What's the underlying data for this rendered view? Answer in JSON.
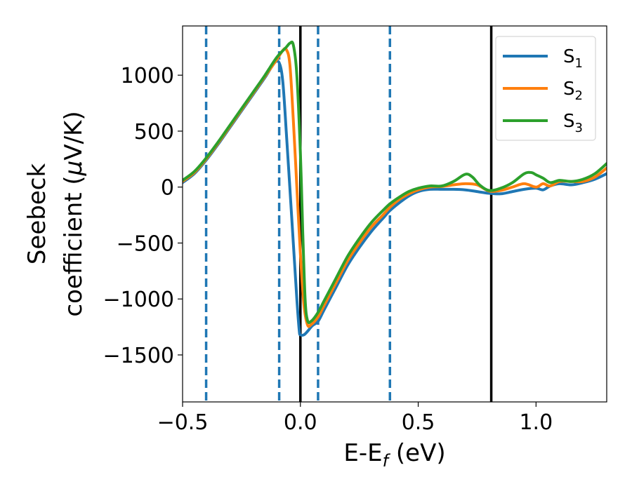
{
  "chart_data": {
    "type": "line",
    "title": "",
    "xlabel": {
      "main": "E-E",
      "sub": "f",
      "tail": " (eV)"
    },
    "ylabel": {
      "line1": "Seebeck",
      "line2": "coefficient  (",
      "mu": "μ",
      "unit": "V/K)"
    },
    "xlim": [
      -0.5,
      1.3
    ],
    "ylim": [
      -1920,
      1440
    ],
    "xticks": [
      -0.5,
      0.0,
      0.5,
      1.0
    ],
    "xtick_labels": [
      "−0.5",
      "0.0",
      "0.5",
      "1.0"
    ],
    "yticks": [
      1000,
      500,
      0,
      -500,
      -1000,
      -1500
    ],
    "ytick_labels": [
      "1000",
      "500",
      "0",
      "−500",
      "−1000",
      "−1500"
    ],
    "grid": false,
    "legend_position": "top-right",
    "vlines_dashed": [
      -0.4,
      -0.09,
      0.075,
      0.38
    ],
    "vlines_solid": [
      0.0,
      0.81
    ],
    "colors": {
      "dashed": "#1f77b4",
      "solid": "#000000"
    },
    "series": [
      {
        "name": "S",
        "sub": "1",
        "color": "#1f77b4",
        "points": [
          [
            -0.5,
            40
          ],
          [
            -0.45,
            120
          ],
          [
            -0.4,
            240
          ],
          [
            -0.35,
            380
          ],
          [
            -0.3,
            530
          ],
          [
            -0.25,
            680
          ],
          [
            -0.2,
            830
          ],
          [
            -0.15,
            980
          ],
          [
            -0.11,
            1110
          ],
          [
            -0.09,
            1110
          ],
          [
            -0.075,
            950
          ],
          [
            -0.06,
            500
          ],
          [
            -0.045,
            0
          ],
          [
            -0.03,
            -500
          ],
          [
            -0.015,
            -1000
          ],
          [
            -0.005,
            -1280
          ],
          [
            0.0,
            -1320
          ],
          [
            0.015,
            -1320
          ],
          [
            0.03,
            -1290
          ],
          [
            0.05,
            -1240
          ],
          [
            0.075,
            -1200
          ],
          [
            0.1,
            -1100
          ],
          [
            0.15,
            -900
          ],
          [
            0.2,
            -700
          ],
          [
            0.25,
            -540
          ],
          [
            0.3,
            -400
          ],
          [
            0.35,
            -280
          ],
          [
            0.38,
            -210
          ],
          [
            0.42,
            -140
          ],
          [
            0.46,
            -80
          ],
          [
            0.5,
            -40
          ],
          [
            0.55,
            -20
          ],
          [
            0.6,
            -20
          ],
          [
            0.65,
            -20
          ],
          [
            0.7,
            -25
          ],
          [
            0.75,
            -40
          ],
          [
            0.8,
            -55
          ],
          [
            0.85,
            -60
          ],
          [
            0.9,
            -40
          ],
          [
            0.95,
            -20
          ],
          [
            1.0,
            -10
          ],
          [
            1.03,
            -25
          ],
          [
            1.06,
            10
          ],
          [
            1.1,
            30
          ],
          [
            1.15,
            20
          ],
          [
            1.2,
            40
          ],
          [
            1.25,
            70
          ],
          [
            1.3,
            120
          ]
        ]
      },
      {
        "name": "S",
        "sub": "2",
        "color": "#ff7f0e",
        "points": [
          [
            -0.5,
            50
          ],
          [
            -0.45,
            130
          ],
          [
            -0.4,
            250
          ],
          [
            -0.35,
            390
          ],
          [
            -0.3,
            540
          ],
          [
            -0.25,
            690
          ],
          [
            -0.2,
            840
          ],
          [
            -0.15,
            990
          ],
          [
            -0.1,
            1140
          ],
          [
            -0.075,
            1220
          ],
          [
            -0.06,
            1230
          ],
          [
            -0.045,
            1100
          ],
          [
            -0.03,
            600
          ],
          [
            -0.015,
            0
          ],
          [
            0.0,
            -600
          ],
          [
            0.015,
            -1050
          ],
          [
            0.03,
            -1230
          ],
          [
            0.045,
            -1230
          ],
          [
            0.075,
            -1160
          ],
          [
            0.1,
            -1060
          ],
          [
            0.15,
            -860
          ],
          [
            0.2,
            -660
          ],
          [
            0.25,
            -500
          ],
          [
            0.3,
            -360
          ],
          [
            0.35,
            -250
          ],
          [
            0.38,
            -180
          ],
          [
            0.42,
            -110
          ],
          [
            0.46,
            -60
          ],
          [
            0.5,
            -25
          ],
          [
            0.55,
            0
          ],
          [
            0.6,
            5
          ],
          [
            0.65,
            20
          ],
          [
            0.7,
            30
          ],
          [
            0.75,
            20
          ],
          [
            0.8,
            -35
          ],
          [
            0.85,
            -30
          ],
          [
            0.9,
            0
          ],
          [
            0.95,
            30
          ],
          [
            1.0,
            0
          ],
          [
            1.03,
            30
          ],
          [
            1.06,
            10
          ],
          [
            1.1,
            50
          ],
          [
            1.15,
            50
          ],
          [
            1.2,
            50
          ],
          [
            1.25,
            90
          ],
          [
            1.3,
            170
          ]
        ]
      },
      {
        "name": "S",
        "sub": "3",
        "color": "#2ca02c",
        "points": [
          [
            -0.5,
            60
          ],
          [
            -0.45,
            140
          ],
          [
            -0.4,
            260
          ],
          [
            -0.35,
            400
          ],
          [
            -0.3,
            550
          ],
          [
            -0.25,
            700
          ],
          [
            -0.2,
            850
          ],
          [
            -0.15,
            1000
          ],
          [
            -0.1,
            1160
          ],
          [
            -0.06,
            1250
          ],
          [
            -0.045,
            1285
          ],
          [
            -0.03,
            1270
          ],
          [
            -0.015,
            1000
          ],
          [
            0.0,
            300
          ],
          [
            0.01,
            -400
          ],
          [
            0.02,
            -1000
          ],
          [
            0.03,
            -1190
          ],
          [
            0.045,
            -1200
          ],
          [
            0.075,
            -1120
          ],
          [
            0.1,
            -1020
          ],
          [
            0.15,
            -820
          ],
          [
            0.2,
            -620
          ],
          [
            0.25,
            -460
          ],
          [
            0.3,
            -320
          ],
          [
            0.35,
            -210
          ],
          [
            0.38,
            -150
          ],
          [
            0.42,
            -90
          ],
          [
            0.46,
            -40
          ],
          [
            0.5,
            -10
          ],
          [
            0.55,
            10
          ],
          [
            0.6,
            10
          ],
          [
            0.65,
            50
          ],
          [
            0.7,
            115
          ],
          [
            0.73,
            90
          ],
          [
            0.76,
            20
          ],
          [
            0.8,
            -30
          ],
          [
            0.85,
            -10
          ],
          [
            0.9,
            40
          ],
          [
            0.95,
            120
          ],
          [
            0.98,
            130
          ],
          [
            1.0,
            110
          ],
          [
            1.03,
            80
          ],
          [
            1.06,
            40
          ],
          [
            1.1,
            60
          ],
          [
            1.15,
            50
          ],
          [
            1.2,
            70
          ],
          [
            1.25,
            120
          ],
          [
            1.3,
            210
          ]
        ]
      }
    ]
  }
}
